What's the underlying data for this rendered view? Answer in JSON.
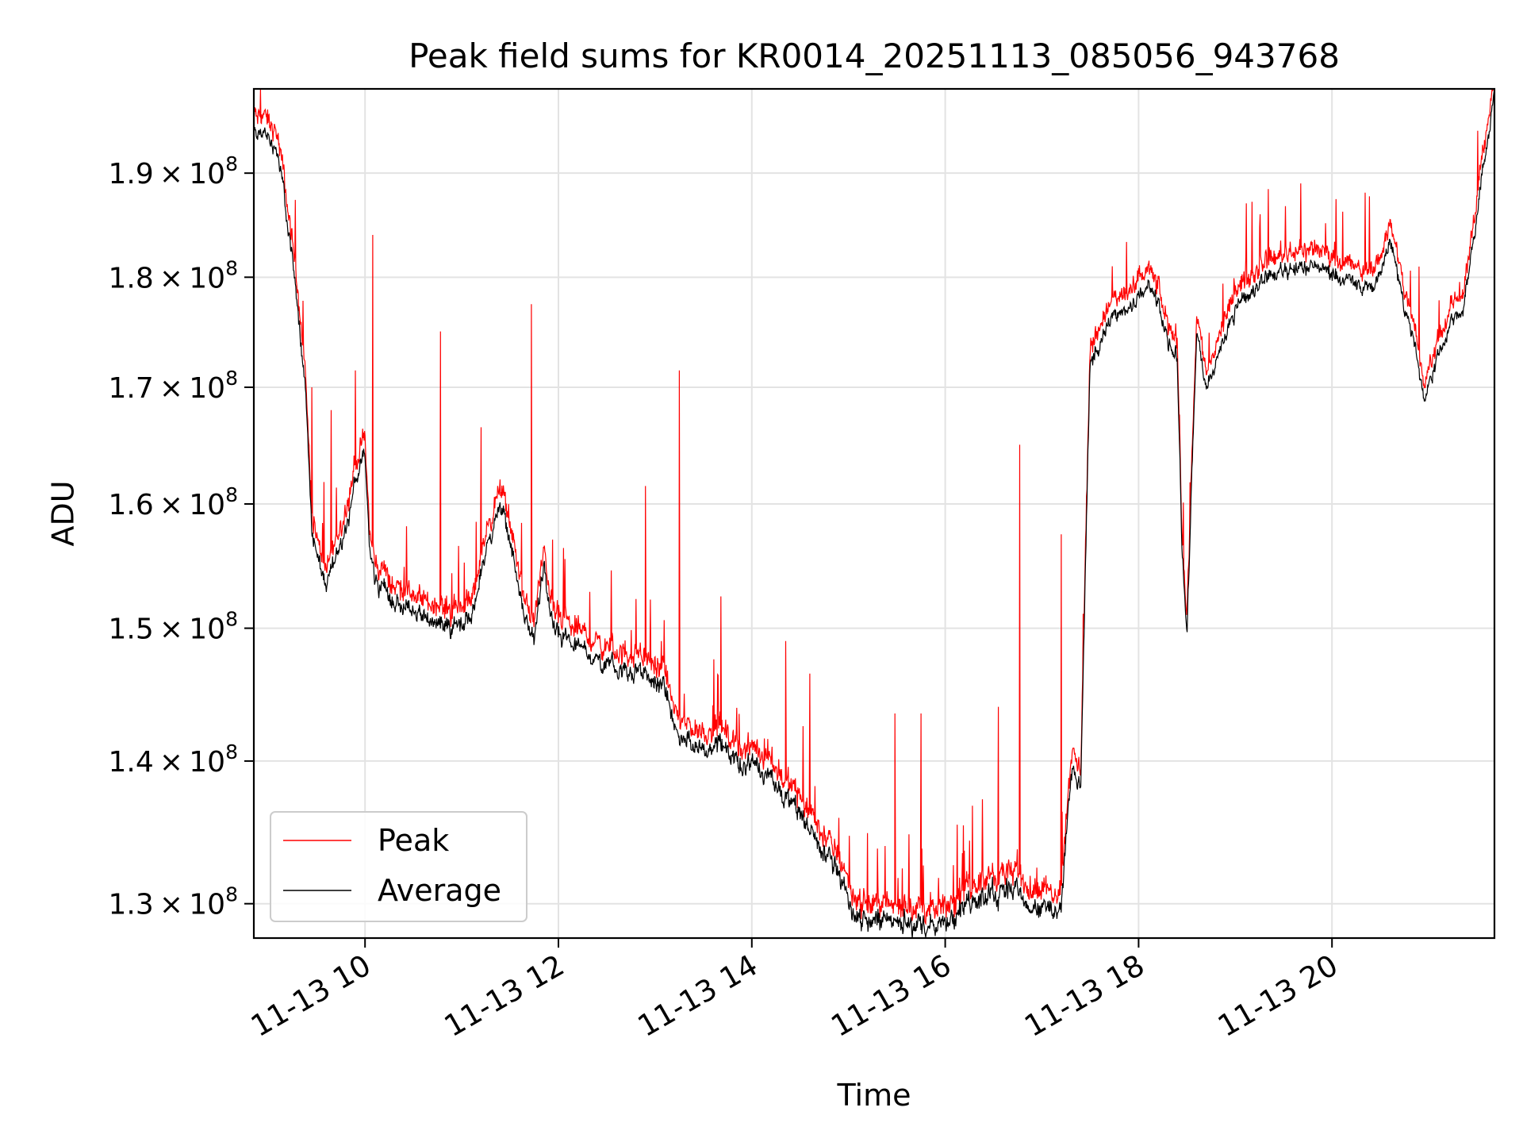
{
  "chart_data": {
    "type": "line",
    "title": "Peak field sums for KR0014_20251113_085056_943768",
    "xlabel": "Time",
    "ylabel": "ADU",
    "x_unit": "hours since 11-13 00:00",
    "xlim": [
      8.85,
      21.68
    ],
    "ylim": [
      127700000.0,
      198500000.0
    ],
    "y_scale": "log",
    "grid": true,
    "legend_position": "lower-left",
    "x_ticks": [
      {
        "value": 10,
        "label": "11-13 10"
      },
      {
        "value": 12,
        "label": "11-13 12"
      },
      {
        "value": 14,
        "label": "11-13 14"
      },
      {
        "value": 16,
        "label": "11-13 16"
      },
      {
        "value": 18,
        "label": "11-13 18"
      },
      {
        "value": 20,
        "label": "11-13 20"
      }
    ],
    "y_ticks": [
      {
        "value": 130000000.0,
        "mantissa": "1.3",
        "exponent": "8"
      },
      {
        "value": 140000000.0,
        "mantissa": "1.4",
        "exponent": "8"
      },
      {
        "value": 150000000.0,
        "mantissa": "1.5",
        "exponent": "8"
      },
      {
        "value": 160000000.0,
        "mantissa": "1.6",
        "exponent": "8"
      },
      {
        "value": 170000000.0,
        "mantissa": "1.7",
        "exponent": "8"
      },
      {
        "value": 180000000.0,
        "mantissa": "1.8",
        "exponent": "8"
      },
      {
        "value": 190000000.0,
        "mantissa": "1.9",
        "exponent": "8"
      }
    ],
    "tick_times_sign": "×",
    "tick_base": "10",
    "series": [
      {
        "name": "Peak",
        "color": "#ff0000"
      },
      {
        "name": "Average",
        "color": "#000000"
      }
    ],
    "average_profile": {
      "x": [
        8.85,
        8.95,
        9.1,
        9.2,
        9.3,
        9.38,
        9.45,
        9.52,
        9.6,
        9.7,
        9.8,
        9.9,
        10.0,
        10.05,
        10.1,
        10.3,
        10.6,
        10.9,
        11.1,
        11.25,
        11.4,
        11.55,
        11.65,
        11.75,
        11.85,
        11.95,
        12.1,
        12.3,
        12.6,
        12.9,
        13.1,
        13.25,
        13.45,
        13.7,
        13.95,
        14.2,
        14.4,
        14.7,
        14.9,
        15.1,
        15.4,
        15.7,
        16.0,
        16.2,
        16.4,
        16.6,
        16.75,
        16.9,
        17.05,
        17.2,
        17.3,
        17.4,
        17.5,
        17.7,
        17.9,
        18.1,
        18.2,
        18.3,
        18.4,
        18.45,
        18.5,
        18.55,
        18.6,
        18.7,
        18.8,
        19.0,
        19.3,
        19.6,
        19.9,
        20.1,
        20.3,
        20.5,
        20.6,
        20.7,
        20.85,
        20.95,
        21.1,
        21.25,
        21.35,
        21.45,
        21.55,
        21.68
      ],
      "y": [
        194000000.0,
        194000000.0,
        192000000.0,
        185000000.0,
        178000000.0,
        170000000.0,
        158000000.0,
        155000000.0,
        153000000.0,
        156000000.0,
        158000000.0,
        162000000.0,
        164000000.0,
        156000000.0,
        154000000.0,
        152000000.0,
        151000000.0,
        150000000.0,
        151000000.0,
        156000000.0,
        160000000.0,
        155000000.0,
        151000000.0,
        149000000.0,
        155000000.0,
        150000000.0,
        149000000.0,
        148000000.0,
        147000000.0,
        146500000.0,
        145000000.0,
        142000000.0,
        141000000.0,
        141000000.0,
        139500000.0,
        139000000.0,
        137000000.0,
        134000000.0,
        132000000.0,
        129000000.0,
        129000000.0,
        128500000.0,
        128500000.0,
        130000000.0,
        130500000.0,
        131000000.0,
        131000000.0,
        130000000.0,
        129500000.0,
        130000000.0,
        139000000.0,
        138000000.0,
        172000000.0,
        176000000.0,
        177000000.0,
        179000000.0,
        177500000.0,
        174000000.0,
        173000000.0,
        156000000.0,
        149000000.0,
        162000000.0,
        175000000.0,
        170000000.0,
        172000000.0,
        177000000.0,
        180000000.0,
        181000000.0,
        181000000.0,
        180000000.0,
        179000000.0,
        180000000.0,
        184000000.0,
        179000000.0,
        174000000.0,
        169000000.0,
        173000000.0,
        176000000.0,
        177000000.0,
        182000000.0,
        190000000.0,
        198000000.0
      ]
    },
    "peak_spikes": [
      {
        "x": 9.45,
        "y": 170000000.0
      },
      {
        "x": 9.65,
        "y": 168000000.0
      },
      {
        "x": 9.9,
        "y": 171500000.0
      },
      {
        "x": 10.08,
        "y": 184000000.0
      },
      {
        "x": 10.78,
        "y": 175000000.0
      },
      {
        "x": 11.2,
        "y": 166500000.0
      },
      {
        "x": 11.72,
        "y": 177500000.0
      },
      {
        "x": 12.9,
        "y": 161500000.0
      },
      {
        "x": 13.25,
        "y": 171500000.0
      },
      {
        "x": 13.68,
        "y": 152500000.0
      },
      {
        "x": 14.35,
        "y": 149000000.0
      },
      {
        "x": 14.6,
        "y": 146500000.0
      },
      {
        "x": 15.48,
        "y": 143500000.0
      },
      {
        "x": 15.75,
        "y": 143500000.0
      },
      {
        "x": 16.55,
        "y": 144000000.0
      },
      {
        "x": 16.77,
        "y": 165000000.0
      },
      {
        "x": 17.2,
        "y": 157500000.0
      },
      {
        "x": 20.9,
        "y": 181000000.0
      }
    ]
  }
}
